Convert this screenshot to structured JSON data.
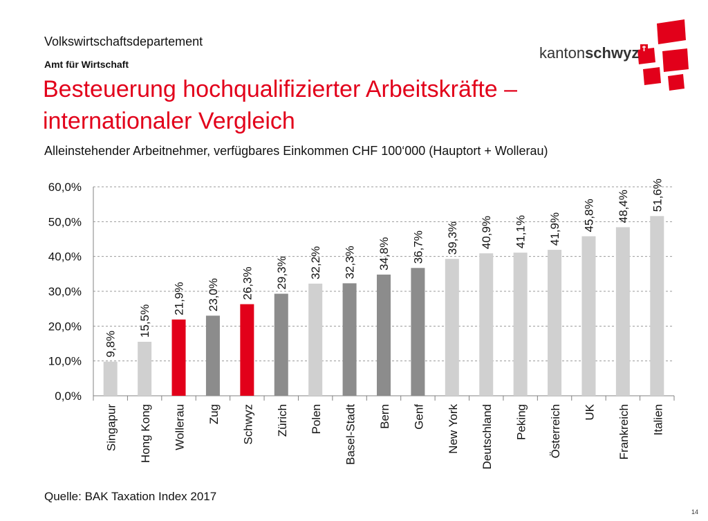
{
  "header": {
    "department": "Volkswirtschaftsdepartement",
    "office": "Amt für Wirtschaft",
    "title": "Besteuerung hochqualifizierter Arbeitskräfte – internationaler Vergleich",
    "subtitle": "Alleinstehender Arbeitnehmer, verfügbares Einkommen CHF 100‘000 (Hauptort + Wollerau)"
  },
  "logo": {
    "text_light": "kanton",
    "text_bold": "schwyz",
    "accent_color": "#e2001a"
  },
  "footer": {
    "source": "Quelle: BAK Taxation Index 2017",
    "page": "14"
  },
  "chart_data": {
    "type": "bar",
    "categories": [
      "Singapur",
      "Hong Kong",
      "Wollerau",
      "Zug",
      "Schwyz",
      "Zürich",
      "Polen",
      "Basel-Stadt",
      "Bern",
      "Genf",
      "New York",
      "Deutschland",
      "Peking",
      "Österreich",
      "UK",
      "Frankreich",
      "Italien"
    ],
    "values": [
      9.8,
      15.5,
      21.9,
      23.0,
      26.3,
      29.3,
      32.2,
      32.3,
      34.8,
      36.7,
      39.3,
      40.9,
      41.1,
      41.9,
      45.8,
      48.4,
      51.6
    ],
    "value_labels": [
      "9,8%",
      "15,5%",
      "21,9%",
      "23,0%",
      "26,3%",
      "29,3%",
      "32,2%",
      "32,3%",
      "34,8%",
      "36,7%",
      "39,3%",
      "40,9%",
      "41,1%",
      "41,9%",
      "45,8%",
      "48,4%",
      "51,6%"
    ],
    "bar_colors": [
      "#d0d0d0",
      "#d0d0d0",
      "#e2001a",
      "#8c8c8c",
      "#e2001a",
      "#8c8c8c",
      "#d0d0d0",
      "#8c8c8c",
      "#8c8c8c",
      "#8c8c8c",
      "#d0d0d0",
      "#d0d0d0",
      "#d0d0d0",
      "#d0d0d0",
      "#d0d0d0",
      "#d0d0d0",
      "#d0d0d0"
    ],
    "y_ticks": [
      0,
      10,
      20,
      30,
      40,
      50,
      60
    ],
    "y_tick_labels": [
      "0,0%",
      "10,0%",
      "20,0%",
      "30,0%",
      "40,0%",
      "50,0%",
      "60,0%"
    ],
    "ylim": [
      0,
      60
    ],
    "grid": true,
    "title": "",
    "xlabel": "",
    "ylabel": ""
  }
}
